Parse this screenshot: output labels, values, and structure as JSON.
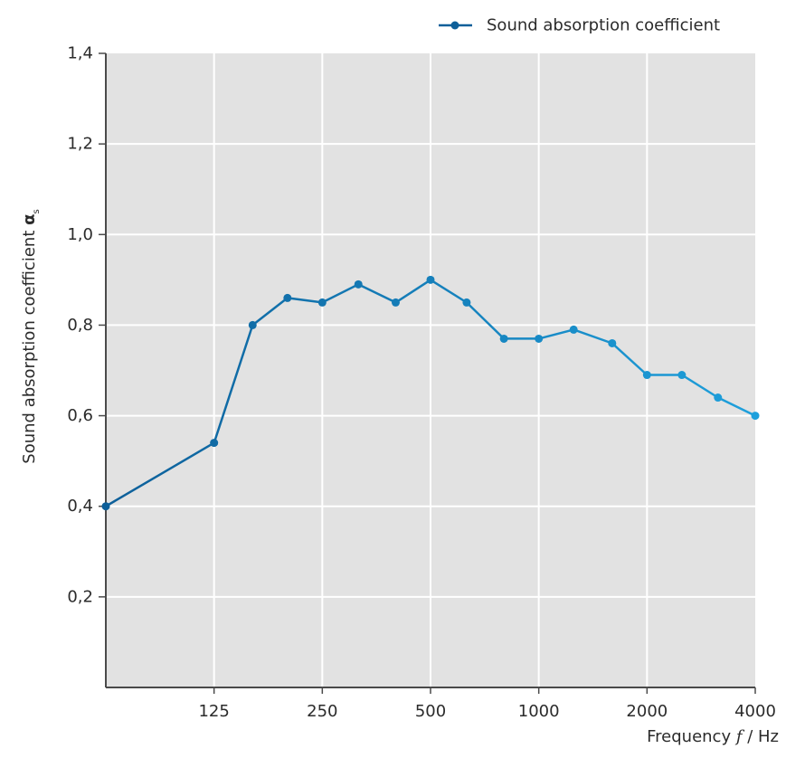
{
  "chart_data": {
    "type": "line",
    "title": "",
    "xlabel": "Frequency f / Hz",
    "xlabel_parts": {
      "prefix": "Frequency ",
      "symbol": "f",
      "suffix": " / Hz"
    },
    "ylabel": "Sound absorption coefficient αs",
    "ylabel_parts": {
      "text": "Sound absorption coefficient ",
      "symbol": "α",
      "subscript": "s"
    },
    "x_scale": "log2",
    "x_tick_labels": [
      "125",
      "250",
      "500",
      "1000",
      "2000",
      "4000"
    ],
    "x_ticks_hz": [
      125,
      250,
      500,
      1000,
      2000,
      4000
    ],
    "xlim": [
      62.5,
      4000
    ],
    "ylim": [
      0,
      1.4
    ],
    "y_ticks": [
      0.2,
      0.4,
      0.6,
      0.8,
      1.0,
      1.2,
      1.4
    ],
    "y_tick_labels": [
      "0,2",
      "0,4",
      "0,6",
      "0,8",
      "1,0",
      "1,2",
      "1,4"
    ],
    "grid": true,
    "legend_position": "top-right",
    "colors": {
      "plot_background": "#e2e2e2",
      "grid": "#ffffff",
      "axis": "#4a4a4a",
      "line_start": "#0d5f99",
      "line_end": "#1ea0dc"
    },
    "series": [
      {
        "name": "Sound absorption coefficient",
        "x": [
          62.5,
          125,
          160,
          200,
          250,
          315,
          400,
          500,
          630,
          800,
          1000,
          1250,
          1600,
          2000,
          2500,
          3150,
          4000
        ],
        "values": [
          0.4,
          0.54,
          0.8,
          0.86,
          0.85,
          0.89,
          0.85,
          0.9,
          0.85,
          0.77,
          0.77,
          0.79,
          0.76,
          0.69,
          0.69,
          0.64,
          0.6
        ]
      }
    ]
  }
}
